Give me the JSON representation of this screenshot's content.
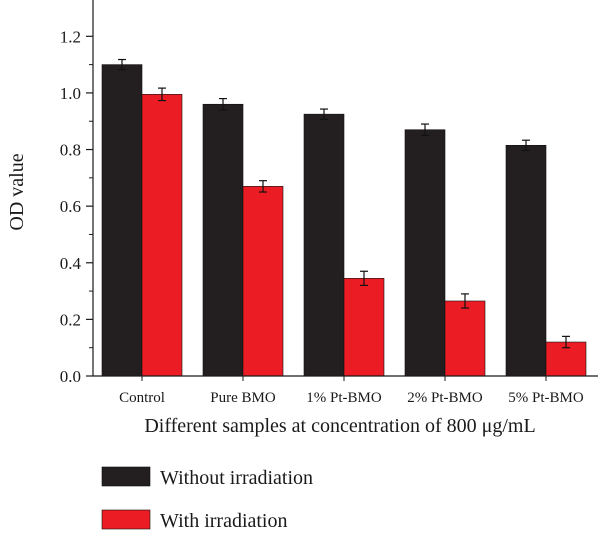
{
  "chart_data": {
    "type": "bar",
    "categories": [
      "Control",
      "Pure BMO",
      "1% Pt-BMO",
      "2% Pt-BMO",
      "5% Pt-BMO"
    ],
    "series": [
      {
        "name": "Without irradiation",
        "color": "#231f20",
        "values": [
          1.1,
          0.96,
          0.925,
          0.87,
          0.815
        ],
        "errors": [
          0.018,
          0.02,
          0.018,
          0.02,
          0.018
        ]
      },
      {
        "name": "With irradiation",
        "color": "#ec1c24",
        "values": [
          0.995,
          0.67,
          0.345,
          0.265,
          0.12
        ],
        "errors": [
          0.022,
          0.02,
          0.025,
          0.025,
          0.02
        ]
      }
    ],
    "ylabel": "OD value",
    "xlabel": "Different samples at concentration of 800 μg/mL",
    "ylim": [
      0,
      1.3
    ],
    "yticks": [
      "0.0",
      "0.2",
      "0.4",
      "0.6",
      "0.8",
      "1.0",
      "1.2"
    ],
    "grid": false,
    "legend_position": "bottom"
  }
}
